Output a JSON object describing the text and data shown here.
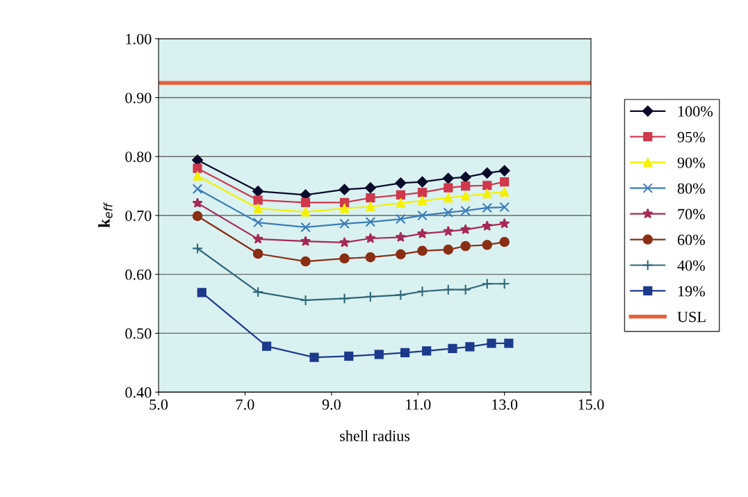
{
  "chart_data": {
    "type": "line",
    "xlabel": "shell radius",
    "ylabel": "k$_{eff}$",
    "x": [
      5.9,
      7.3,
      8.4,
      9.3,
      9.9,
      10.6,
      11.1,
      11.7,
      12.1,
      12.6,
      13.0
    ],
    "xlim": [
      5.0,
      15.0
    ],
    "xticks": [
      {
        "value": 5,
        "label": "5.0"
      },
      {
        "value": 7,
        "label": "7.0"
      },
      {
        "value": 9,
        "label": "9.0"
      },
      {
        "value": 11,
        "label": "11.0"
      },
      {
        "value": 13,
        "label": "13.0"
      },
      {
        "value": 15,
        "label": "15.0"
      }
    ],
    "ylim": [
      0.4,
      1.0
    ],
    "yticks": [
      {
        "value": 0.4,
        "label": "0.40"
      },
      {
        "value": 0.5,
        "label": "0.50"
      },
      {
        "value": 0.6,
        "label": "0.60"
      },
      {
        "value": 0.7,
        "label": "0.70"
      },
      {
        "value": 0.8,
        "label": "0.80"
      },
      {
        "value": 0.9,
        "label": "0.90"
      },
      {
        "value": 1.0,
        "label": "1.00"
      }
    ],
    "grid": "y",
    "legend": "right",
    "series": [
      {
        "name": "100%",
        "color": "#0a0a2a",
        "marker": "diamond",
        "values": [
          0.794,
          0.741,
          0.735,
          0.744,
          0.747,
          0.755,
          0.757,
          0.763,
          0.765,
          0.772,
          0.776
        ]
      },
      {
        "name": "95%",
        "color": "#d0384c",
        "marker": "square",
        "values": [
          0.78,
          0.726,
          0.722,
          0.722,
          0.73,
          0.735,
          0.739,
          0.747,
          0.75,
          0.751,
          0.757
        ]
      },
      {
        "name": "90%",
        "color": "#f5f000",
        "marker": "triangle",
        "values": [
          0.767,
          0.712,
          0.706,
          0.712,
          0.715,
          0.721,
          0.725,
          0.73,
          0.733,
          0.737,
          0.74
        ]
      },
      {
        "name": "80%",
        "color": "#3a7cb8",
        "marker": "cross",
        "values": [
          0.745,
          0.688,
          0.68,
          0.686,
          0.689,
          0.694,
          0.7,
          0.705,
          0.708,
          0.713,
          0.714
        ]
      },
      {
        "name": "70%",
        "color": "#a52a55",
        "marker": "star",
        "values": [
          0.721,
          0.66,
          0.656,
          0.654,
          0.661,
          0.663,
          0.669,
          0.673,
          0.676,
          0.682,
          0.686
        ]
      },
      {
        "name": "60%",
        "color": "#8a2e14",
        "marker": "circle",
        "values": [
          0.699,
          0.635,
          0.622,
          0.627,
          0.629,
          0.634,
          0.64,
          0.642,
          0.648,
          0.65,
          0.655
        ]
      },
      {
        "name": "40%",
        "color": "#2e6678",
        "marker": "plus",
        "values": [
          0.644,
          0.57,
          0.556,
          0.559,
          0.562,
          0.565,
          0.571,
          0.574,
          0.574,
          0.584,
          0.584
        ]
      },
      {
        "name": "19%",
        "color": "#1c3a8c",
        "marker": "square",
        "x": [
          6.0,
          7.5,
          8.6,
          9.4,
          10.1,
          10.7,
          11.2,
          11.8,
          12.2,
          12.7,
          13.1
        ],
        "values": [
          0.569,
          0.478,
          0.459,
          0.461,
          0.464,
          0.467,
          0.47,
          0.474,
          0.477,
          0.483,
          0.483
        ]
      }
    ],
    "ref_lines": [
      {
        "axis": "y",
        "value": 0.925,
        "label": "USL",
        "color": "#e8603c"
      }
    ]
  }
}
